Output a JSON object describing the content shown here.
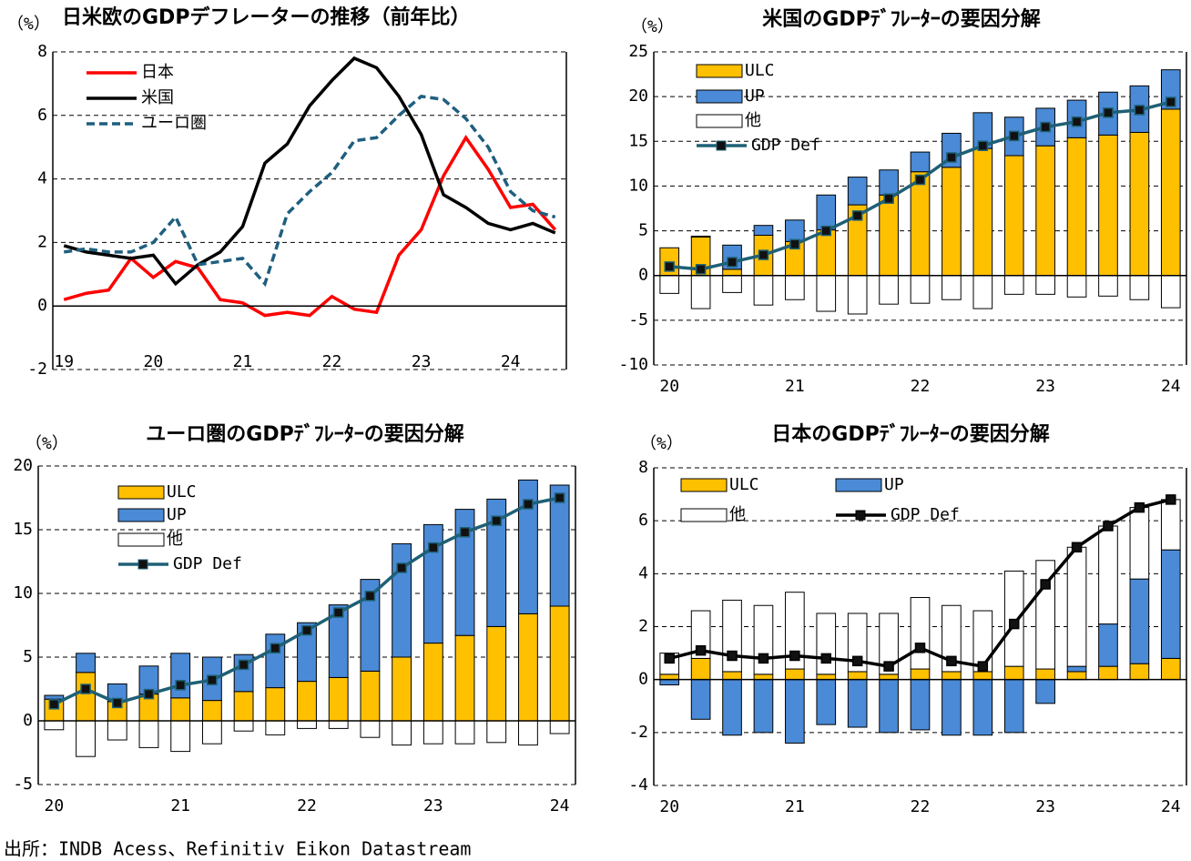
{
  "chart_data": [
    {
      "type": "line",
      "title": "日米欧のGDPデフレーターの推移（前年比）",
      "unit": "（%）",
      "categories": [
        "19",
        null,
        null,
        null,
        "20",
        null,
        null,
        null,
        "21",
        null,
        null,
        null,
        "22",
        null,
        null,
        null,
        "23",
        null,
        null,
        null,
        "24",
        null,
        null
      ],
      "ylim": [
        -2,
        8
      ],
      "yticks": [
        -2,
        0,
        2,
        4,
        6,
        8
      ],
      "grid": true,
      "series": [
        {
          "name": "日本",
          "color": "#ff0000",
          "values": [
            0.2,
            0.4,
            0.5,
            1.5,
            0.9,
            1.4,
            1.2,
            0.2,
            0.1,
            -0.3,
            -0.2,
            -0.3,
            0.3,
            -0.1,
            -0.2,
            1.6,
            2.4,
            4.1,
            5.3,
            4.3,
            3.1,
            3.2,
            2.4
          ]
        },
        {
          "name": "米国",
          "color": "#000000",
          "values": [
            1.9,
            1.7,
            1.6,
            1.5,
            1.6,
            0.7,
            1.3,
            1.7,
            2.5,
            4.5,
            5.1,
            6.3,
            7.1,
            7.8,
            7.5,
            6.6,
            5.4,
            3.5,
            3.1,
            2.6,
            2.4,
            2.6,
            2.3
          ]
        },
        {
          "name": "ユーロ圏",
          "color": "#1f5f7f",
          "dashed": true,
          "values": [
            1.7,
            1.8,
            1.7,
            1.7,
            2.0,
            2.8,
            1.3,
            1.4,
            1.5,
            0.7,
            2.9,
            3.6,
            4.2,
            5.2,
            5.3,
            6.0,
            6.6,
            6.5,
            5.9,
            5.0,
            3.6,
            3.0,
            2.8
          ]
        }
      ]
    },
    {
      "type": "combo",
      "title": "米国のGDPﾃﾞﾌﾚｰﾀｰの要因分解",
      "unit": "（%）",
      "categories": [
        "20",
        null,
        null,
        null,
        "21",
        null,
        null,
        null,
        "22",
        null,
        null,
        null,
        "23",
        null,
        null,
        null,
        "24"
      ],
      "ylim": [
        -10,
        25
      ],
      "yticks": [
        -10,
        -5,
        0,
        5,
        10,
        15,
        20,
        25
      ],
      "grid": true,
      "series": [
        {
          "name": "ULC",
          "kind": "bar",
          "color": "#ffc000",
          "values": [
            3.1,
            4.3,
            0.7,
            4.5,
            3.8,
            5.1,
            7.9,
            9.0,
            11.6,
            12.1,
            14.2,
            13.4,
            14.5,
            15.4,
            15.7,
            16.0,
            18.6
          ]
        },
        {
          "name": "UP",
          "kind": "bar",
          "color": "#4a8ad6",
          "values": [
            0.0,
            0.1,
            2.7,
            1.1,
            2.4,
            3.9,
            3.1,
            2.8,
            2.2,
            3.8,
            4.0,
            4.3,
            4.2,
            4.2,
            4.8,
            5.2,
            4.4
          ]
        },
        {
          "name": "他",
          "kind": "bar",
          "color": "#ffffff",
          "values": [
            -2.0,
            -3.7,
            -1.9,
            -3.3,
            -2.7,
            -4.0,
            -4.3,
            -3.2,
            -3.1,
            -2.7,
            -3.7,
            -2.1,
            -2.1,
            -2.4,
            -2.3,
            -2.7,
            -3.6
          ]
        },
        {
          "name": "GDP Def",
          "kind": "line",
          "color": "#1e6076",
          "values": [
            1.0,
            0.7,
            1.5,
            2.3,
            3.5,
            5.0,
            6.7,
            8.6,
            10.7,
            13.2,
            14.5,
            15.6,
            16.6,
            17.2,
            18.2,
            18.5,
            19.4
          ]
        }
      ]
    },
    {
      "type": "combo",
      "title": "ユーロ圏のGDPﾃﾞﾌﾚｰﾀｰの要因分解",
      "unit": "（%）",
      "categories": [
        "20",
        null,
        null,
        null,
        "21",
        null,
        null,
        null,
        "22",
        null,
        null,
        null,
        "23",
        null,
        null,
        null,
        "24"
      ],
      "ylim": [
        -5,
        20
      ],
      "yticks": [
        -5,
        0,
        5,
        10,
        15,
        20
      ],
      "grid": true,
      "series": [
        {
          "name": "ULC",
          "kind": "bar",
          "color": "#ffc000",
          "values": [
            1.7,
            3.8,
            1.5,
            2.1,
            1.8,
            1.6,
            2.3,
            2.6,
            3.1,
            3.4,
            3.9,
            5.0,
            6.1,
            6.7,
            7.4,
            8.4,
            9.0
          ]
        },
        {
          "name": "UP",
          "kind": "bar",
          "color": "#4a8ad6",
          "values": [
            0.3,
            1.5,
            1.4,
            2.2,
            3.5,
            3.4,
            2.9,
            4.2,
            4.6,
            5.7,
            7.2,
            8.9,
            9.3,
            9.9,
            10.0,
            10.5,
            9.5
          ]
        },
        {
          "name": "他",
          "kind": "bar",
          "color": "#ffffff",
          "values": [
            -0.7,
            -2.8,
            -1.5,
            -2.1,
            -2.4,
            -1.8,
            -0.8,
            -1.1,
            -0.6,
            -0.6,
            -1.3,
            -1.9,
            -1.8,
            -1.8,
            -1.7,
            -1.9,
            -1.0
          ]
        },
        {
          "name": "GDP Def",
          "kind": "line",
          "color": "#1e6076",
          "values": [
            1.3,
            2.5,
            1.4,
            2.1,
            2.8,
            3.2,
            4.4,
            5.7,
            7.1,
            8.5,
            9.8,
            12.0,
            13.6,
            14.8,
            15.7,
            17.0,
            17.5
          ]
        }
      ]
    },
    {
      "type": "combo",
      "title": "日本のGDPﾃﾞﾌﾚｰﾀｰの要因分解",
      "unit": "（%）",
      "categories": [
        "20",
        null,
        null,
        null,
        "21",
        null,
        null,
        null,
        "22",
        null,
        null,
        null,
        "23",
        null,
        null,
        null,
        "24"
      ],
      "ylim": [
        -4,
        8
      ],
      "yticks": [
        -4,
        -2,
        0,
        2,
        4,
        6,
        8
      ],
      "grid": true,
      "series": [
        {
          "name": "ULC",
          "kind": "bar",
          "color": "#ffc000",
          "values": [
            0.2,
            0.8,
            0.3,
            0.2,
            0.4,
            0.2,
            0.3,
            0.2,
            0.4,
            0.3,
            0.3,
            0.5,
            0.4,
            0.3,
            0.5,
            0.6,
            0.8
          ]
        },
        {
          "name": "UP",
          "kind": "bar",
          "color": "#4a8ad6",
          "values": [
            -0.2,
            -1.5,
            -2.1,
            -2.0,
            -2.4,
            -1.7,
            -1.8,
            -2.0,
            -1.9,
            -2.1,
            -2.1,
            -2.0,
            -0.9,
            0.2,
            1.6,
            3.2,
            4.1
          ]
        },
        {
          "name": "他",
          "kind": "bar",
          "color": "#ffffff",
          "values": [
            0.8,
            1.8,
            2.7,
            2.6,
            2.9,
            2.3,
            2.2,
            2.3,
            2.7,
            2.5,
            2.3,
            3.6,
            4.1,
            4.5,
            3.7,
            2.7,
            1.9
          ]
        },
        {
          "name": "GDP Def",
          "kind": "line",
          "color": "#000000",
          "values": [
            0.8,
            1.1,
            0.9,
            0.8,
            0.9,
            0.8,
            0.7,
            0.5,
            1.2,
            0.7,
            0.5,
            2.1,
            3.6,
            5.0,
            5.8,
            6.5,
            6.8
          ]
        }
      ]
    }
  ],
  "source": "出所：INDB Acess、Refinitiv Eikon Datastream"
}
